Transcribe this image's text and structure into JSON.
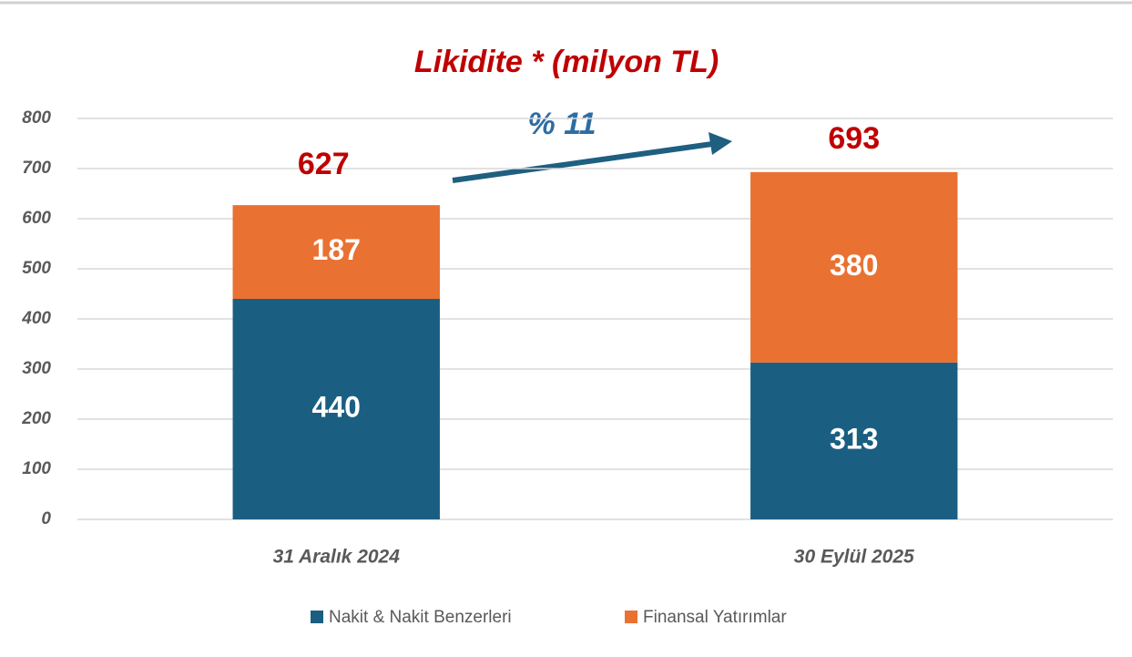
{
  "chart_data": {
    "type": "stacked_bar",
    "title": "Likidite * (milyon TL)",
    "categories": [
      "31 Aralık 2024",
      "30 Eylül 2025"
    ],
    "series": [
      {
        "name": "Nakit & Nakit Benzerleri",
        "color": "#1a5f82",
        "values": [
          440,
          313
        ]
      },
      {
        "name": "Finansal Yatırımlar",
        "color": "#e97132",
        "values": [
          187,
          380
        ]
      }
    ],
    "totals": [
      627,
      693
    ],
    "annotation": "% 11",
    "ylim": [
      0,
      800
    ],
    "yticks": [
      0,
      100,
      200,
      300,
      400,
      500,
      600,
      700,
      800
    ],
    "grid": true,
    "legend": "bottom"
  }
}
